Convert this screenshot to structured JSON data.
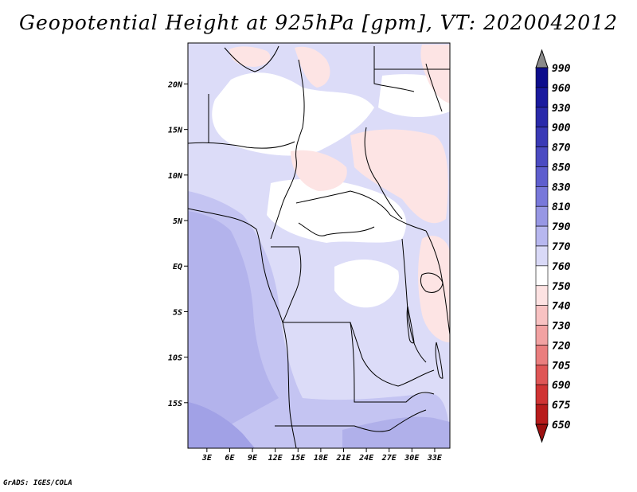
{
  "title": "Geopotential Height at 925hPa [gpm], VT: 2020042012",
  "footer": "GrADS: IGES/COLA",
  "map": {
    "lat_labels": [
      "20N",
      "15N",
      "10N",
      "5N",
      "EQ",
      "5S",
      "10S",
      "15S"
    ],
    "lat_values": [
      20,
      15,
      10,
      5,
      0,
      -5,
      -10,
      -15
    ],
    "lon_labels": [
      "3E",
      "6E",
      "9E",
      "12E",
      "15E",
      "18E",
      "21E",
      "24E",
      "27E",
      "30E",
      "33E"
    ],
    "lon_values": [
      3,
      6,
      9,
      12,
      15,
      18,
      21,
      24,
      27,
      30,
      33
    ],
    "lon_range": [
      0.5,
      35
    ],
    "lat_range": [
      -20,
      24.5
    ]
  },
  "colorbar": {
    "labels": [
      "990",
      "960",
      "930",
      "900",
      "870",
      "850",
      "830",
      "810",
      "790",
      "770",
      "760",
      "750",
      "740",
      "730",
      "720",
      "705",
      "690",
      "675",
      "650"
    ],
    "colors": [
      "#8a8a8a",
      "#0d0d8c",
      "#1a1a9e",
      "#2a2aaa",
      "#3a3ab6",
      "#4b4bc2",
      "#5e5ece",
      "#7878da",
      "#9797e4",
      "#b7b7ef",
      "#d9d9f7",
      "#ffffff",
      "#fde2e2",
      "#f8c2c2",
      "#f2a2a2",
      "#ea7e7e",
      "#df5656",
      "#d03434",
      "#b81c1c",
      "#9c1010"
    ]
  }
}
